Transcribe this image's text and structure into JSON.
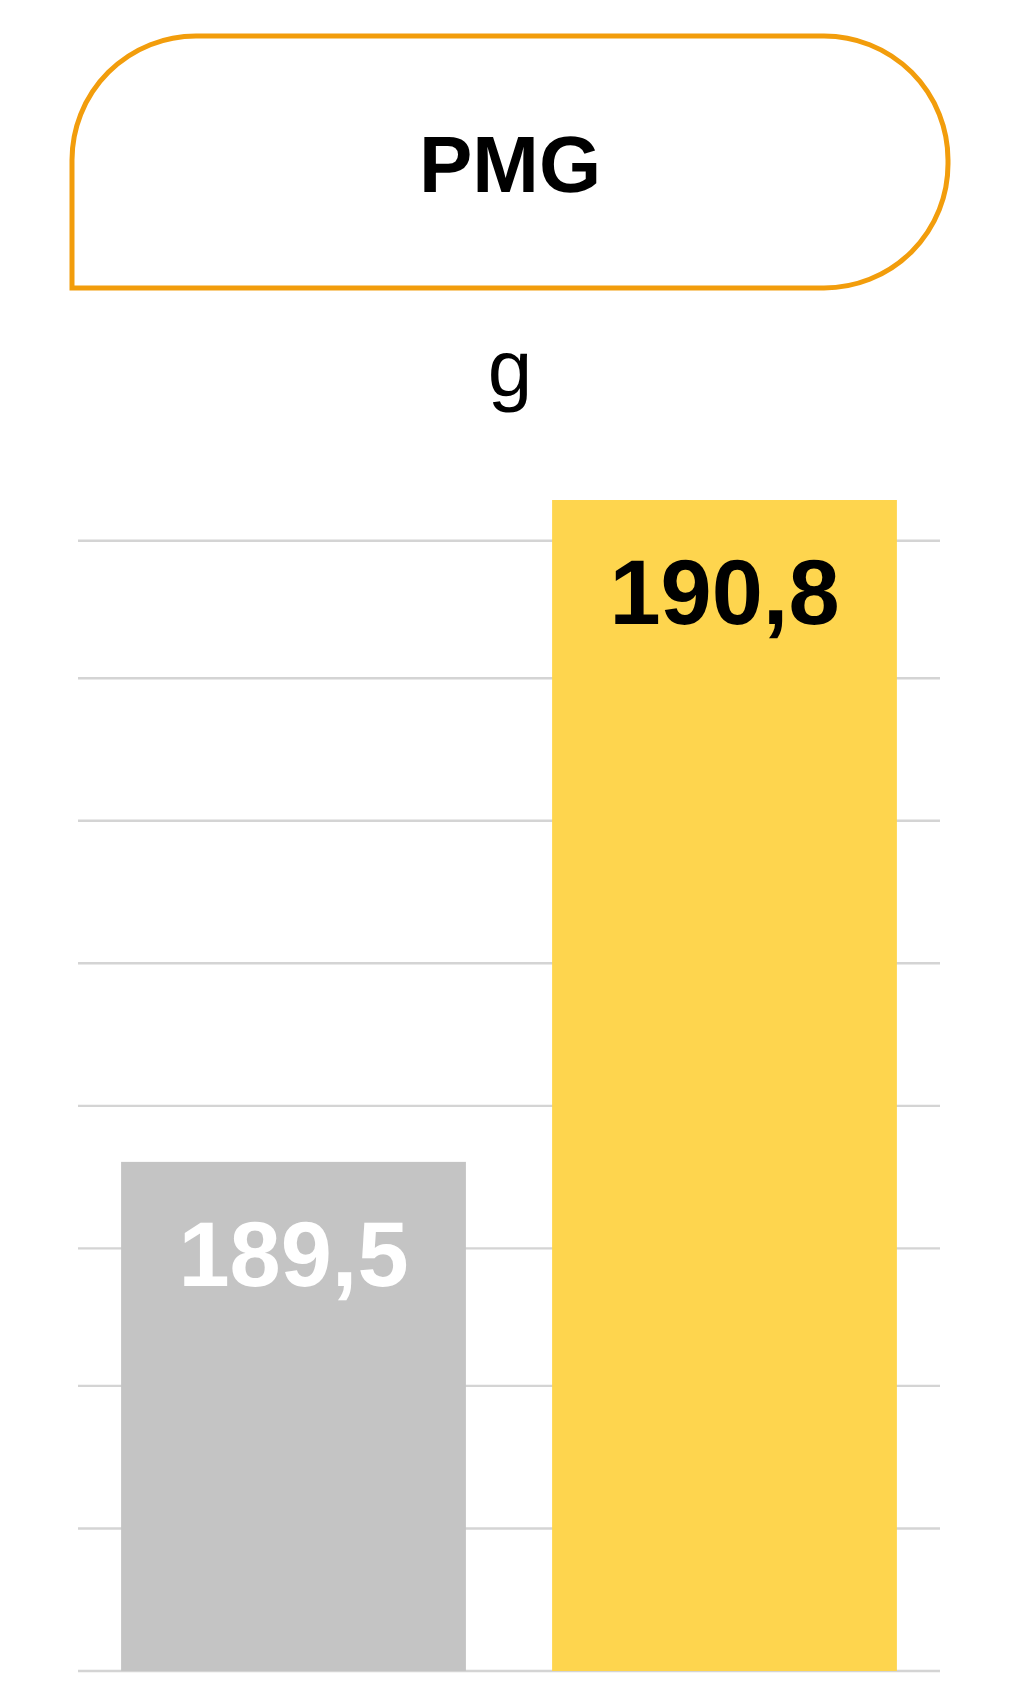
{
  "chart_data": {
    "type": "bar",
    "title": "PMG",
    "ylabel": "g",
    "categories": [
      null,
      null
    ],
    "values": [
      189.5,
      190.8
    ],
    "colors": [
      "#c4c4c4",
      "#fed54e"
    ],
    "value_labels": [
      "189,5",
      "190,8"
    ],
    "ylim": [
      188.5,
      190.8
    ],
    "yticks": [
      {
        "value": 188.5,
        "label": null
      },
      {
        "value": 188.78,
        "label": null
      },
      {
        "value": 189.06,
        "label": null
      },
      {
        "value": 189.33,
        "label": null
      },
      {
        "value": 189.61,
        "label": null
      },
      {
        "value": 189.89,
        "label": null
      },
      {
        "value": 190.17,
        "label": null
      },
      {
        "value": 190.45,
        "label": null
      },
      {
        "value": 190.72,
        "label": null
      }
    ],
    "grid": "y"
  }
}
